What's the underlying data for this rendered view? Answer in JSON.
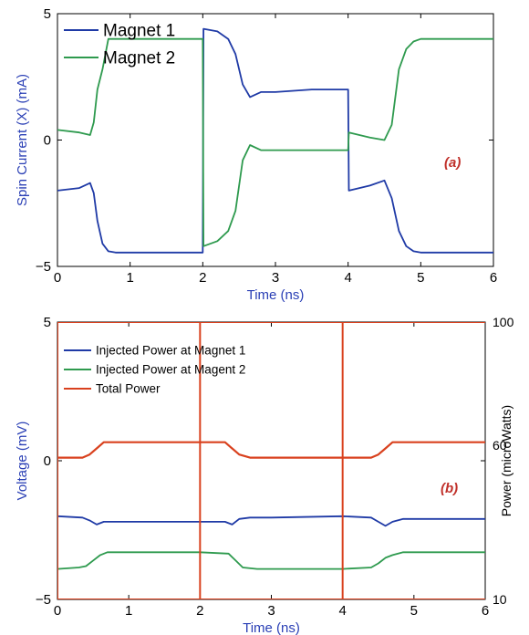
{
  "colors": {
    "magnet1": "#1f3aa6",
    "magnet2": "#2e9a4e",
    "total": "#d9411e",
    "axis_label": "#2a3fb5",
    "annotation": "#c0302a",
    "frame": "#000000",
    "top_right_frame": "#000000"
  },
  "chart_data": [
    {
      "type": "line",
      "annotation": "(a)",
      "xlabel": "Time (ns)",
      "ylabel": "Spin Current (X) (mA)",
      "xlim": [
        0,
        6
      ],
      "ylim": [
        -5,
        5
      ],
      "x_ticks": [
        "0",
        "1",
        "2",
        "3",
        "4",
        "5",
        "6"
      ],
      "y_ticks": [
        "-5",
        "0",
        "5"
      ],
      "legend_position": "top-left",
      "series": [
        {
          "name": "Magnet 1",
          "color_key": "magnet1",
          "x": [
            0,
            0.3,
            0.45,
            0.5,
            0.55,
            0.62,
            0.7,
            0.8,
            1.0,
            1.5,
            1.99,
            2.0,
            2.01,
            2.2,
            2.35,
            2.45,
            2.55,
            2.65,
            2.8,
            3.0,
            3.5,
            3.99,
            4.0,
            4.01,
            4.3,
            4.5,
            4.6,
            4.7,
            4.8,
            4.9,
            5.0,
            5.5,
            6.0
          ],
          "y": [
            -2.0,
            -1.9,
            -1.7,
            -2.1,
            -3.2,
            -4.1,
            -4.4,
            -4.45,
            -4.45,
            -4.45,
            -4.45,
            -4.45,
            4.4,
            4.3,
            4.0,
            3.4,
            2.2,
            1.7,
            1.9,
            1.9,
            2.0,
            2.0,
            2.0,
            -2.0,
            -1.8,
            -1.6,
            -2.3,
            -3.6,
            -4.2,
            -4.4,
            -4.45,
            -4.45,
            -4.45
          ]
        },
        {
          "name": "Magnet 2",
          "color_key": "magnet2",
          "x": [
            0,
            0.3,
            0.45,
            0.5,
            0.55,
            0.62,
            0.7,
            0.8,
            1.0,
            1.5,
            1.99,
            2.0,
            2.01,
            2.2,
            2.35,
            2.45,
            2.55,
            2.65,
            2.8,
            3.0,
            3.5,
            3.99,
            4.0,
            4.01,
            4.3,
            4.5,
            4.6,
            4.7,
            4.8,
            4.9,
            5.0,
            5.5,
            6.0
          ],
          "y": [
            0.4,
            0.3,
            0.2,
            0.7,
            2.0,
            2.8,
            4.0,
            4.0,
            4.0,
            4.0,
            4.0,
            4.0,
            -4.2,
            -4.0,
            -3.6,
            -2.8,
            -0.8,
            -0.2,
            -0.4,
            -0.4,
            -0.4,
            -0.4,
            -0.4,
            0.3,
            0.1,
            0.0,
            0.6,
            2.8,
            3.6,
            3.9,
            4.0,
            4.0,
            4.0
          ]
        }
      ]
    },
    {
      "type": "line",
      "annotation": "(b)",
      "xlabel": "Time (ns)",
      "ylabel": "Voltage (mV)",
      "ylabel_right": "Power (microWatts)",
      "xlim": [
        0,
        6
      ],
      "ylim": [
        -5,
        5
      ],
      "ylim_right": [
        10,
        100
      ],
      "x_ticks": [
        "0",
        "1",
        "2",
        "3",
        "4",
        "5",
        "6"
      ],
      "y_ticks": [
        "-5",
        "0",
        "5"
      ],
      "y_ticks_right": [
        "10",
        "60",
        "100"
      ],
      "legend_position": "top-left",
      "series": [
        {
          "name": "Injected Power at Magnet 1",
          "color_key": "magnet1",
          "axis": "left",
          "x": [
            0,
            0.35,
            0.45,
            0.55,
            0.65,
            0.8,
            1.0,
            2.0,
            2.35,
            2.45,
            2.55,
            2.7,
            3.0,
            4.0,
            4.4,
            4.5,
            4.6,
            4.7,
            4.85,
            5.0,
            6.0
          ],
          "y": [
            -2.0,
            -2.05,
            -2.15,
            -2.3,
            -2.2,
            -2.2,
            -2.2,
            -2.2,
            -2.2,
            -2.3,
            -2.1,
            -2.05,
            -2.05,
            -2.0,
            -2.05,
            -2.2,
            -2.35,
            -2.2,
            -2.1,
            -2.1,
            -2.1
          ]
        },
        {
          "name": "Injected Power at Magent 2",
          "color_key": "magnet2",
          "axis": "left",
          "x": [
            0,
            0.3,
            0.4,
            0.5,
            0.6,
            0.7,
            0.8,
            1.0,
            2.0,
            2.4,
            2.5,
            2.6,
            2.8,
            3.0,
            4.0,
            4.4,
            4.5,
            4.6,
            4.7,
            4.85,
            5.0,
            6.0
          ],
          "y": [
            -3.9,
            -3.85,
            -3.8,
            -3.6,
            -3.4,
            -3.3,
            -3.3,
            -3.3,
            -3.3,
            -3.35,
            -3.6,
            -3.85,
            -3.9,
            -3.9,
            -3.9,
            -3.85,
            -3.7,
            -3.5,
            -3.4,
            -3.3,
            -3.3,
            -3.3
          ]
        },
        {
          "name": "Total Power",
          "color_key": "total",
          "axis": "right",
          "x": [
            0,
            0.35,
            0.45,
            0.55,
            0.65,
            0.8,
            1.0,
            2.0,
            2.35,
            2.45,
            2.55,
            2.7,
            3.0,
            4.0,
            4.4,
            4.5,
            4.6,
            4.7,
            4.85,
            5.0,
            6.0
          ],
          "y": [
            56,
            56,
            57,
            59,
            61,
            61,
            61,
            61,
            61,
            59,
            57,
            56,
            56,
            56,
            56,
            57,
            59,
            61,
            61,
            61,
            61
          ]
        },
        {
          "name": "",
          "color_key": "total",
          "axis": "right",
          "segments": [
            {
              "x": [
                0,
                0
              ],
              "y": [
                10,
                100
              ]
            },
            {
              "x": [
                2,
                2
              ],
              "y": [
                10,
                100
              ]
            },
            {
              "x": [
                4,
                4
              ],
              "y": [
                10,
                100
              ]
            },
            {
              "x": [
                0,
                6
              ],
              "y": [
                100,
                100
              ]
            },
            {
              "x": [
                0,
                6
              ],
              "y": [
                10,
                10
              ]
            }
          ]
        }
      ]
    }
  ]
}
